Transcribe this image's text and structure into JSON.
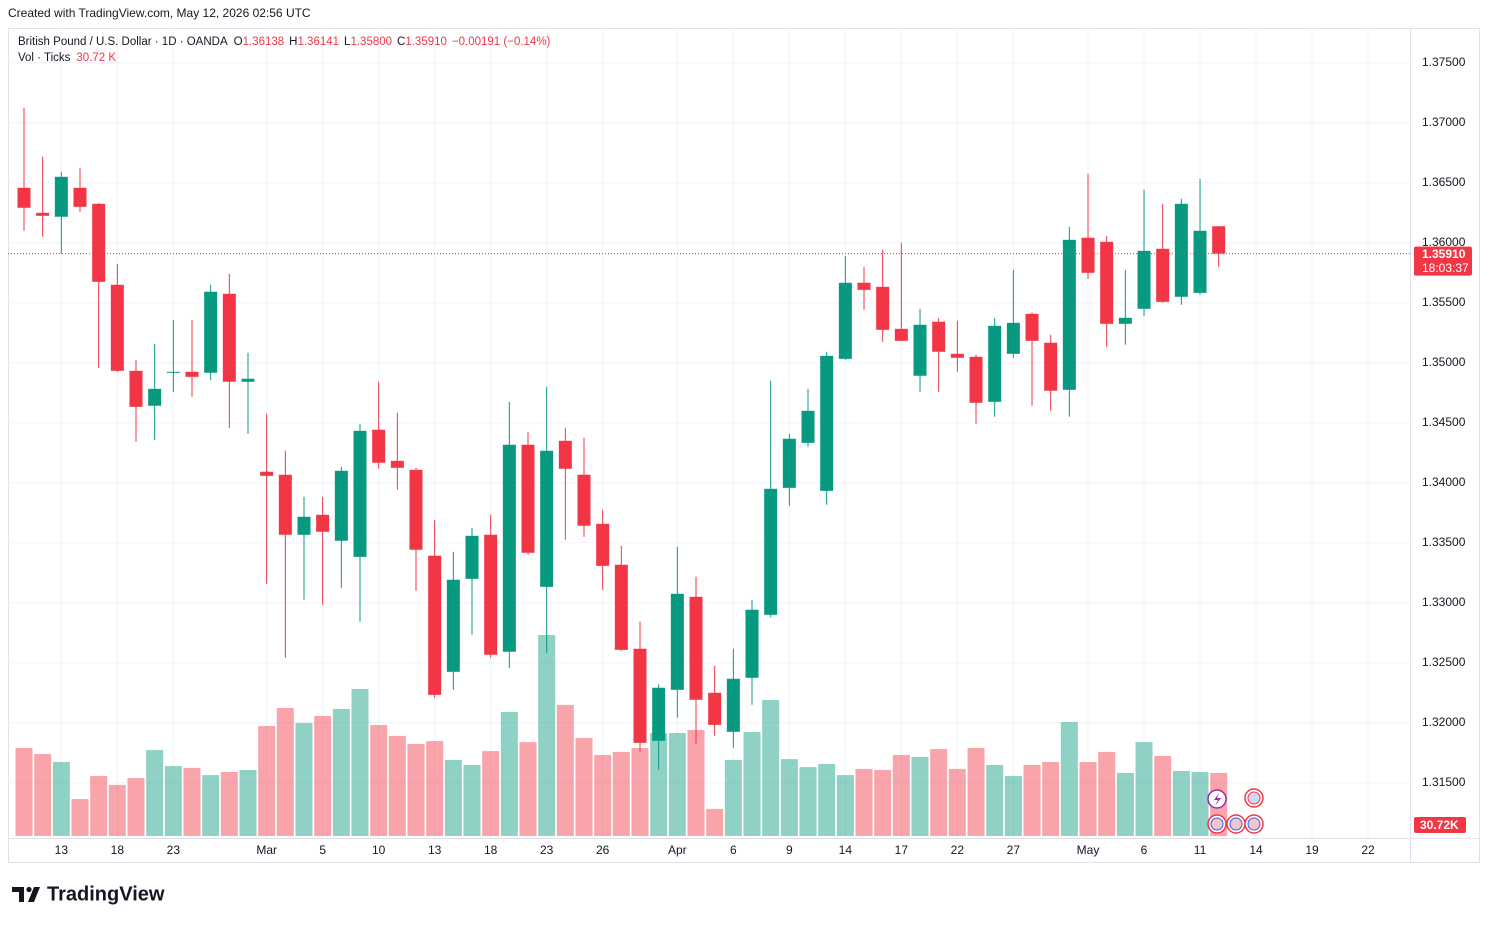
{
  "header": {
    "credit": "Created with TradingView.com, May 12, 2026 02:56 UTC",
    "logo": "TradingView"
  },
  "chart_data": {
    "type": "candlestick",
    "title": "British Pound / U.S. Dollar · 1D · OANDA",
    "legend_keys": [
      "O",
      "H",
      "L",
      "C"
    ],
    "last_value_labels": [
      "1.36138",
      "1.36141",
      "1.35800",
      "1.35910"
    ],
    "change_label": "−0.00191 (−0.14%)",
    "volume_title": "Vol · Ticks",
    "volume_label": "30.72 K",
    "volume_axis_label": "30.72K",
    "countdown": "18:03:37",
    "categories": [
      null,
      null,
      "13",
      null,
      null,
      "18",
      null,
      null,
      "23",
      null,
      null,
      null,
      null,
      "Mar",
      null,
      null,
      "5",
      null,
      null,
      "10",
      null,
      null,
      "13",
      null,
      null,
      "18",
      null,
      null,
      "23",
      null,
      null,
      "26",
      null,
      null,
      null,
      "Apr",
      null,
      null,
      "6",
      null,
      null,
      "9",
      null,
      null,
      "14",
      null,
      null,
      "17",
      null,
      null,
      "22",
      null,
      null,
      "27",
      null,
      null,
      null,
      "May",
      null,
      null,
      "6",
      null,
      null,
      "11",
      null,
      null,
      "14",
      null,
      null,
      "19",
      null,
      null,
      "22"
    ],
    "open": [
      1.36458,
      1.3625,
      1.36217,
      1.36458,
      1.36325,
      1.3565,
      1.34933,
      1.34642,
      1.34917,
      1.34925,
      1.34917,
      1.35575,
      1.34842,
      1.34092,
      1.34067,
      1.33567,
      1.33733,
      1.33517,
      1.33383,
      1.34442,
      1.34183,
      1.34108,
      1.33392,
      1.32425,
      1.332,
      1.33567,
      1.32592,
      1.34317,
      1.33133,
      1.3435,
      1.34067,
      1.33658,
      1.33317,
      1.32617,
      1.3185,
      1.32275,
      1.3305,
      1.3225,
      1.31925,
      1.32375,
      1.329,
      1.33958,
      1.34333,
      1.33933,
      1.35033,
      1.35667,
      1.35633,
      1.35283,
      1.34892,
      1.35342,
      1.35075,
      1.3505,
      1.34675,
      1.35075,
      1.35408,
      1.35167,
      1.34775,
      1.36042,
      1.36008,
      1.35325,
      1.3545,
      1.3595,
      1.3555,
      1.35583,
      1.36138,
      null,
      null,
      null,
      null,
      null,
      null,
      null,
      null
    ],
    "high": [
      1.37125,
      1.36717,
      1.36592,
      1.36625,
      1.3633,
      1.35825,
      1.35025,
      1.35158,
      1.35358,
      1.35358,
      1.3565,
      1.35742,
      1.35083,
      1.34575,
      1.34267,
      1.33883,
      1.33883,
      1.34133,
      1.34492,
      1.34842,
      1.34583,
      1.34125,
      1.33692,
      1.33425,
      1.33625,
      1.33733,
      1.34675,
      1.34425,
      1.348,
      1.34458,
      1.34375,
      1.33775,
      1.33475,
      1.32842,
      1.3232,
      1.33467,
      1.33217,
      1.32475,
      1.32617,
      1.33025,
      1.3485,
      1.34408,
      1.34783,
      1.35092,
      1.35892,
      1.358,
      1.35942,
      1.36,
      1.3545,
      1.35375,
      1.3535,
      1.35067,
      1.35375,
      1.35775,
      1.3542,
      1.35233,
      1.36133,
      1.36575,
      1.36058,
      1.35775,
      1.36442,
      1.36325,
      1.36367,
      1.36533,
      1.36141,
      null,
      null,
      null,
      null,
      null,
      null,
      null,
      null
    ],
    "low": [
      1.361,
      1.3605,
      1.35908,
      1.36258,
      1.34958,
      1.34925,
      1.34342,
      1.34358,
      1.34758,
      1.34717,
      1.34858,
      1.34458,
      1.34408,
      1.33158,
      1.32542,
      1.33025,
      1.32983,
      1.33125,
      1.32842,
      1.34117,
      1.33942,
      1.331,
      1.32208,
      1.32275,
      1.32733,
      1.32542,
      1.32458,
      1.334,
      1.32583,
      1.33525,
      1.3355,
      1.33108,
      1.326,
      1.31758,
      1.31608,
      1.32042,
      1.31825,
      1.31892,
      1.31792,
      1.3215,
      1.3288,
      1.33808,
      1.343,
      1.33817,
      1.35025,
      1.35442,
      1.35175,
      1.3518,
      1.34758,
      1.34758,
      1.34925,
      1.34492,
      1.3455,
      1.35042,
      1.34642,
      1.346,
      1.3455,
      1.357,
      1.35133,
      1.3515,
      1.35392,
      1.355,
      1.35483,
      1.35567,
      1.358,
      null,
      null,
      null,
      null,
      null,
      null,
      null,
      null
    ],
    "close": [
      1.36292,
      1.36225,
      1.3655,
      1.363,
      1.35675,
      1.34933,
      1.34633,
      1.34783,
      1.34925,
      1.34883,
      1.35592,
      1.34842,
      1.34867,
      1.34058,
      1.33567,
      1.33717,
      1.33592,
      1.341,
      1.34433,
      1.34167,
      1.34125,
      1.33442,
      1.32233,
      1.33192,
      1.33558,
      1.32567,
      1.34317,
      1.33417,
      1.34267,
      1.34117,
      1.33642,
      1.33308,
      1.32608,
      1.31833,
      1.32292,
      1.33075,
      1.32192,
      1.31983,
      1.32367,
      1.32942,
      1.3395,
      1.34367,
      1.346,
      1.35058,
      1.35667,
      1.35608,
      1.35275,
      1.35183,
      1.35317,
      1.35092,
      1.35042,
      1.34667,
      1.35308,
      1.35333,
      1.35183,
      1.34767,
      1.36025,
      1.3575,
      1.35325,
      1.35375,
      1.35933,
      1.35508,
      1.36325,
      1.361,
      1.3591,
      null,
      null,
      null,
      null,
      null,
      null,
      null,
      null
    ],
    "volume": [
      42900,
      40000,
      36100,
      18000,
      29300,
      24900,
      28300,
      41900,
      34100,
      33200,
      29700,
      31200,
      32200,
      53600,
      62400,
      55100,
      58500,
      61900,
      71700,
      54100,
      48800,
      44900,
      46300,
      37100,
      34600,
      41400,
      60500,
      45800,
      98000,
      63900,
      47800,
      39500,
      41000,
      42900,
      50200,
      50200,
      51700,
      13200,
      37100,
      50700,
      66300,
      37500,
      33600,
      35100,
      29700,
      32700,
      32200,
      39500,
      38500,
      42400,
      32700,
      42900,
      34600,
      29300,
      34600,
      36100,
      55600,
      36100,
      41000,
      30700,
      45800,
      39000,
      31700,
      31200,
      30720,
      null,
      null,
      null,
      null,
      null,
      null,
      null,
      null
    ],
    "up_color": "#089981",
    "down_color": "#f23645",
    "ylim": [
      1.3104,
      1.3779
    ],
    "yticks": [
      {
        "value": 1.315,
        "label": "1.31500"
      },
      {
        "value": 1.32,
        "label": "1.32000"
      },
      {
        "value": 1.325,
        "label": "1.32500"
      },
      {
        "value": 1.33,
        "label": "1.33000"
      },
      {
        "value": 1.335,
        "label": "1.33500"
      },
      {
        "value": 1.34,
        "label": "1.34000"
      },
      {
        "value": 1.345,
        "label": "1.34500"
      },
      {
        "value": 1.35,
        "label": "1.35000"
      },
      {
        "value": 1.355,
        "label": "1.35500"
      },
      {
        "value": 1.36,
        "label": "1.36000"
      },
      {
        "value": 1.365,
        "label": "1.36500"
      },
      {
        "value": 1.37,
        "label": "1.37000"
      },
      {
        "value": 1.375,
        "label": "1.37500"
      }
    ],
    "grid": true
  }
}
